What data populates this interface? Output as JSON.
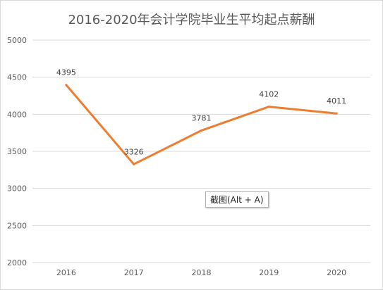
{
  "chart_data": {
    "type": "line",
    "title": "2016-2020年会计学院毕业生平均起点薪酬",
    "xlabel": "",
    "ylabel": "",
    "x": [
      "2016",
      "2017",
      "2018",
      "2019",
      "2020"
    ],
    "series": [
      {
        "values": [
          4395,
          3326,
          3781,
          4102,
          4011
        ],
        "color": "#ED7D31"
      }
    ],
    "ylim": [
      2000,
      5000
    ],
    "yticks": [
      2000,
      2500,
      3000,
      3500,
      4000,
      4500,
      5000
    ],
    "data_labels": true,
    "grid": true,
    "legend": "none"
  },
  "tooltip": {
    "text": "截图(Alt + A)"
  }
}
